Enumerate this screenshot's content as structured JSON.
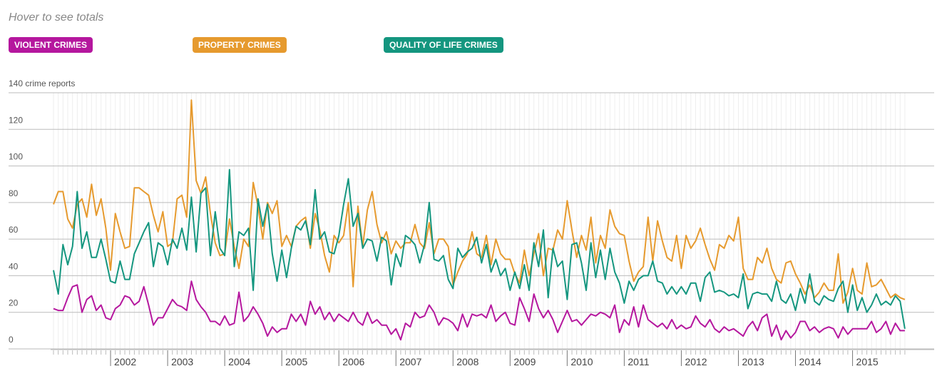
{
  "hint": "Hover to see totals",
  "chart_data": {
    "type": "line",
    "categories": [
      null,
      null,
      null,
      null,
      null,
      null,
      null,
      null,
      null,
      null,
      null,
      null,
      "2002",
      null,
      null,
      null,
      null,
      null,
      null,
      null,
      null,
      null,
      null,
      null,
      "2003",
      null,
      null,
      null,
      null,
      null,
      null,
      null,
      null,
      null,
      null,
      null,
      "2004",
      null,
      null,
      null,
      null,
      null,
      null,
      null,
      null,
      null,
      null,
      null,
      "2005",
      null,
      null,
      null,
      null,
      null,
      null,
      null,
      null,
      null,
      null,
      null,
      "2006",
      null,
      null,
      null,
      null,
      null,
      null,
      null,
      null,
      null,
      null,
      null,
      "2007",
      null,
      null,
      null,
      null,
      null,
      null,
      null,
      null,
      null,
      null,
      null,
      "2008",
      null,
      null,
      null,
      null,
      null,
      null,
      null,
      null,
      null,
      null,
      null,
      "2009",
      null,
      null,
      null,
      null,
      null,
      null,
      null,
      null,
      null,
      null,
      null,
      "2010",
      null,
      null,
      null,
      null,
      null,
      null,
      null,
      null,
      null,
      null,
      null,
      "2011",
      null,
      null,
      null,
      null,
      null,
      null,
      null,
      null,
      null,
      null,
      null,
      "2012",
      null,
      null,
      null,
      null,
      null,
      null,
      null,
      null,
      null,
      null,
      null,
      "2013",
      null,
      null,
      null,
      null,
      null,
      null,
      null,
      null,
      null,
      null,
      null,
      "2014",
      null,
      null,
      null,
      null,
      null,
      null,
      null,
      null,
      null,
      null,
      null,
      "2015",
      null,
      null,
      null,
      null,
      null,
      null,
      null,
      null,
      null,
      null,
      null
    ],
    "series": [
      {
        "name": "VIOLENT CRIMES",
        "color": "#b5179e",
        "values": [
          22,
          21,
          21,
          28,
          34,
          35,
          20,
          27,
          29,
          21,
          24,
          17,
          16,
          22,
          24,
          29,
          28,
          24,
          26,
          34,
          24,
          13,
          17,
          17,
          22,
          27,
          24,
          23,
          21,
          37,
          27,
          23,
          20,
          15,
          15,
          13,
          18,
          13,
          14,
          31,
          15,
          18,
          23,
          19,
          14,
          7,
          12,
          9,
          11,
          11,
          19,
          15,
          19,
          13,
          26,
          19,
          23,
          16,
          20,
          15,
          19,
          17,
          15,
          20,
          15,
          13,
          20,
          14,
          16,
          13,
          13,
          8,
          11,
          5,
          14,
          12,
          20,
          17,
          18,
          24,
          20,
          13,
          17,
          16,
          14,
          10,
          19,
          12,
          19,
          18,
          19,
          17,
          24,
          15,
          18,
          20,
          14,
          13,
          28,
          22,
          15,
          30,
          22,
          17,
          21,
          16,
          9,
          15,
          21,
          15,
          16,
          13,
          16,
          19,
          18,
          20,
          19,
          17,
          24,
          9,
          16,
          13,
          23,
          12,
          24,
          16,
          14,
          12,
          14,
          11,
          16,
          11,
          13,
          11,
          12,
          18,
          14,
          12,
          16,
          11,
          9,
          12,
          10,
          11,
          9,
          7,
          12,
          15,
          10,
          17,
          19,
          7,
          13,
          5,
          10,
          6,
          9,
          15,
          15,
          10,
          12,
          9,
          11,
          12,
          11,
          6,
          12,
          8,
          11,
          11,
          11,
          11,
          15,
          9,
          11,
          15,
          8,
          14,
          10,
          10
        ]
      },
      {
        "name": "PROPERTY CRIMES",
        "color": "#e69a2e",
        "values": [
          79,
          86,
          86,
          71,
          66,
          79,
          82,
          72,
          90,
          73,
          82,
          66,
          43,
          74,
          64,
          55,
          56,
          88,
          88,
          86,
          84,
          73,
          64,
          75,
          56,
          58,
          82,
          84,
          72,
          136,
          92,
          85,
          94,
          74,
          58,
          51,
          52,
          71,
          56,
          44,
          60,
          56,
          91,
          78,
          60,
          80,
          74,
          81,
          56,
          62,
          56,
          67,
          70,
          72,
          55,
          74,
          65,
          51,
          42,
          62,
          58,
          62,
          80,
          34,
          78,
          56,
          76,
          86,
          68,
          58,
          64,
          52,
          59,
          55,
          58,
          58,
          68,
          58,
          55,
          69,
          52,
          60,
          60,
          56,
          35,
          42,
          48,
          52,
          64,
          52,
          50,
          62,
          46,
          60,
          52,
          49,
          49,
          41,
          36,
          54,
          40,
          52,
          63,
          40,
          55,
          54,
          65,
          60,
          81,
          65,
          50,
          62,
          54,
          72,
          47,
          62,
          55,
          76,
          67,
          63,
          62,
          48,
          37,
          42,
          45,
          72,
          48,
          70,
          59,
          50,
          48,
          62,
          44,
          62,
          55,
          59,
          66,
          57,
          49,
          43,
          57,
          55,
          62,
          59,
          72,
          44,
          38,
          38,
          50,
          47,
          55,
          44,
          38,
          36,
          47,
          48,
          41,
          36,
          30,
          35,
          28,
          31,
          36,
          32,
          32,
          52,
          25,
          31,
          44,
          32,
          30,
          47,
          34,
          35,
          38,
          33,
          28,
          30,
          28,
          27
        ]
      },
      {
        "name": "QUALITY OF LIFE CRIMES",
        "color": "#14967f",
        "values": [
          43,
          30,
          57,
          46,
          56,
          86,
          55,
          64,
          50,
          50,
          60,
          49,
          37,
          36,
          48,
          38,
          38,
          52,
          58,
          64,
          69,
          45,
          58,
          56,
          46,
          60,
          55,
          66,
          54,
          83,
          53,
          85,
          88,
          51,
          75,
          55,
          51,
          98,
          45,
          64,
          62,
          66,
          32,
          82,
          67,
          79,
          52,
          37,
          54,
          39,
          55,
          67,
          65,
          70,
          57,
          87,
          60,
          64,
          53,
          52,
          62,
          79,
          93,
          67,
          74,
          55,
          60,
          59,
          48,
          61,
          59,
          35,
          52,
          45,
          62,
          60,
          57,
          47,
          57,
          80,
          49,
          48,
          51,
          38,
          33,
          55,
          50,
          53,
          55,
          61,
          47,
          57,
          42,
          49,
          40,
          44,
          32,
          42,
          33,
          46,
          32,
          58,
          45,
          65,
          28,
          55,
          45,
          48,
          27,
          57,
          58,
          47,
          32,
          58,
          39,
          54,
          38,
          55,
          42,
          36,
          25,
          37,
          32,
          38,
          40,
          40,
          48,
          37,
          36,
          30,
          34,
          30,
          34,
          30,
          36,
          36,
          26,
          39,
          42,
          31,
          32,
          31,
          29,
          30,
          28,
          41,
          22,
          30,
          31,
          30,
          30,
          26,
          37,
          27,
          25,
          30,
          21,
          33,
          25,
          41,
          26,
          24,
          29,
          27,
          26,
          33,
          37,
          20,
          35,
          21,
          28,
          20,
          24,
          30,
          24,
          26,
          24,
          29,
          26,
          11
        ]
      }
    ],
    "ylim": [
      0,
      140
    ],
    "yticks": [
      0,
      20,
      40,
      60,
      80,
      100,
      120,
      {
        "value": 140,
        "label": "140 crime reports"
      }
    ],
    "grid": true
  }
}
